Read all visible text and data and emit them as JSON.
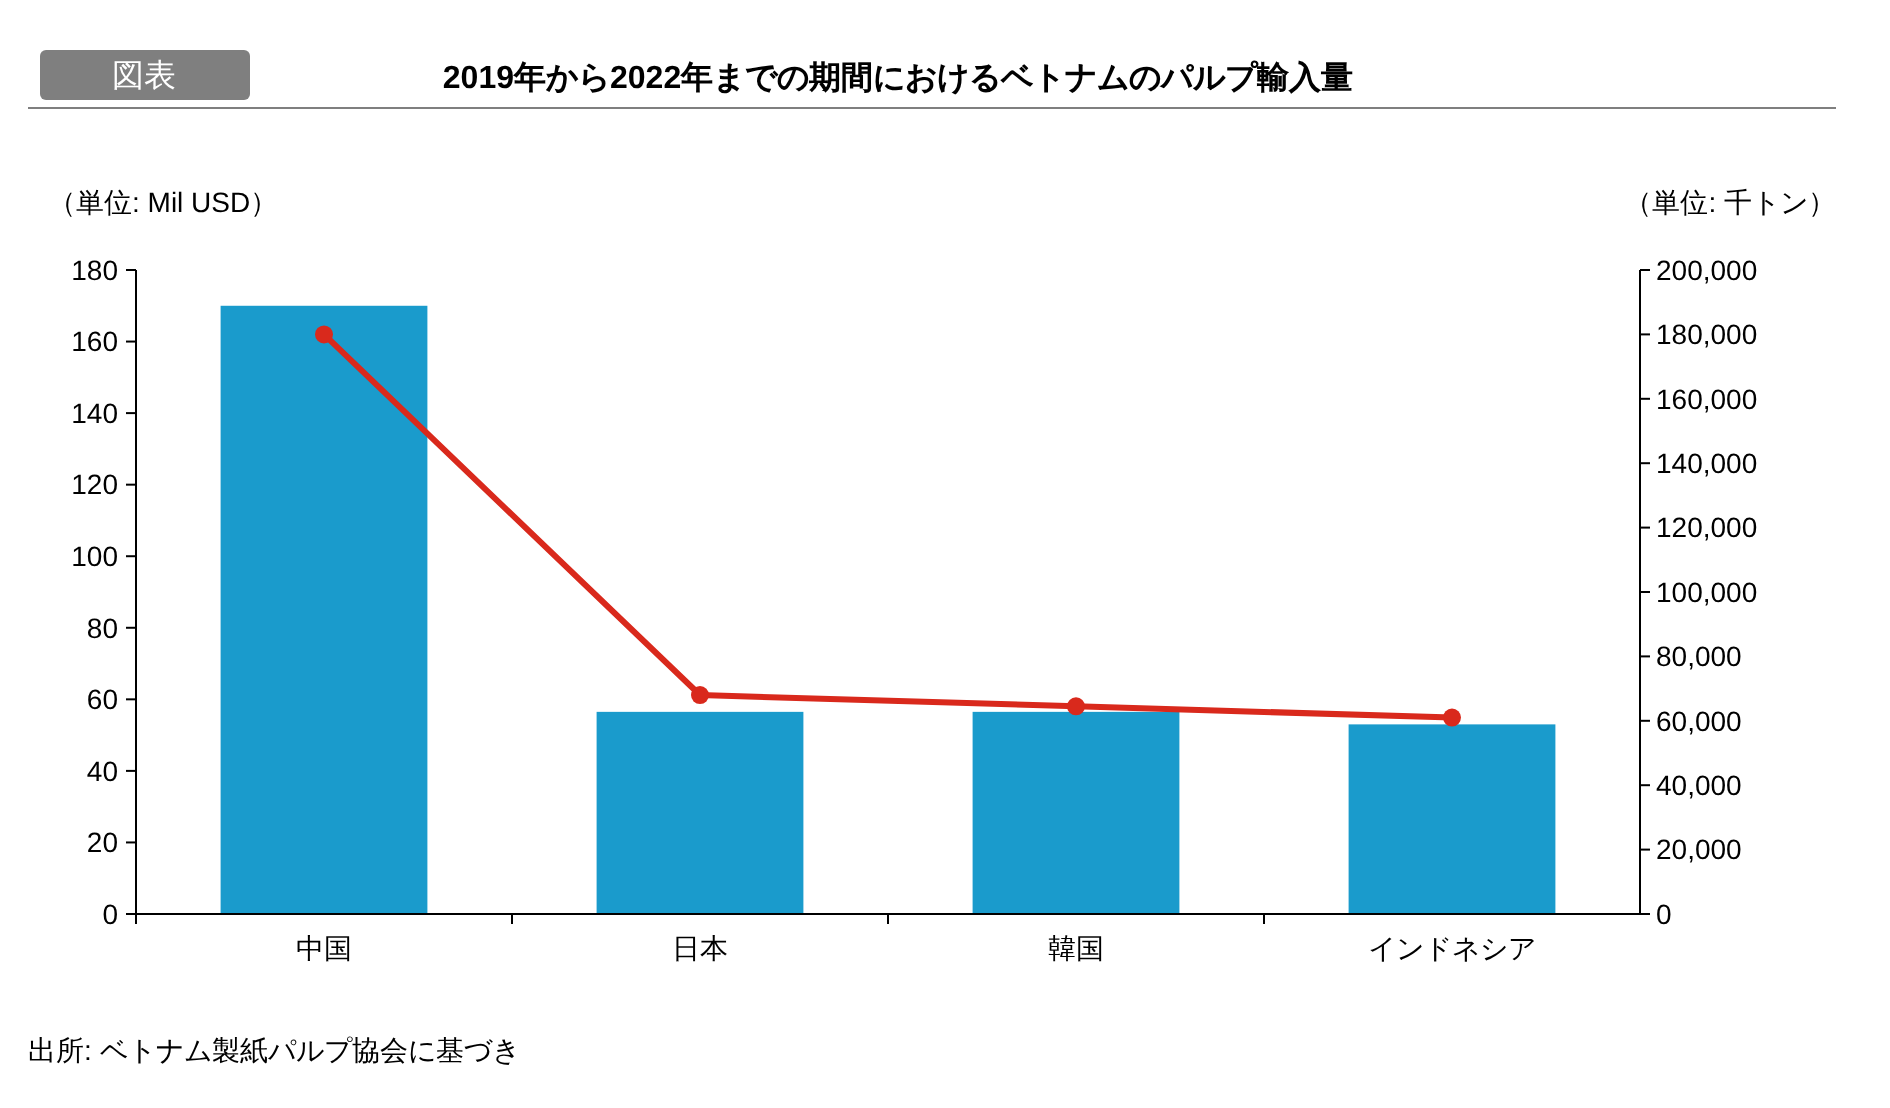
{
  "chart_data": {
    "type": "bar",
    "title": "2019年から2022年までの期間におけるベトナムのパルプ輸入量",
    "ylabel": "（単位: Mil USD）",
    "y2label": "（単位: 千トン）",
    "categories": [
      "中国",
      "日本",
      "韓国",
      "インドネシア"
    ],
    "series": [
      {
        "color": "#1a9bcc",
        "values": [
          170,
          56.5,
          56.5,
          53
        ]
      },
      {
        "type": "line",
        "axis": "y2",
        "color": "#d9291c",
        "marker": "circle",
        "values": [
          180000,
          68000,
          64500,
          61000
        ]
      }
    ],
    "ylim": [
      0,
      180
    ],
    "yticks": [
      0,
      20,
      40,
      60,
      80,
      100,
      120,
      140,
      160,
      180
    ],
    "y2lim": [
      0,
      200000
    ],
    "y2ticks": [
      {
        "value": 0,
        "label": "0"
      },
      {
        "value": 20000,
        "label": "20,000"
      },
      {
        "value": 40000,
        "label": "40,000"
      },
      {
        "value": 60000,
        "label": "60,000"
      },
      {
        "value": 80000,
        "label": "80,000"
      },
      {
        "value": 100000,
        "label": "100,000"
      },
      {
        "value": 120000,
        "label": "120,000"
      },
      {
        "value": 140000,
        "label": "140,000"
      },
      {
        "value": 160000,
        "label": "160,000"
      },
      {
        "value": 180000,
        "label": "180,000"
      },
      {
        "value": 200000,
        "label": "200,000"
      }
    ],
    "grid": false,
    "annotations": [
      "図表",
      "出所: ベトナム製紙パルプ協会に基づき"
    ]
  }
}
